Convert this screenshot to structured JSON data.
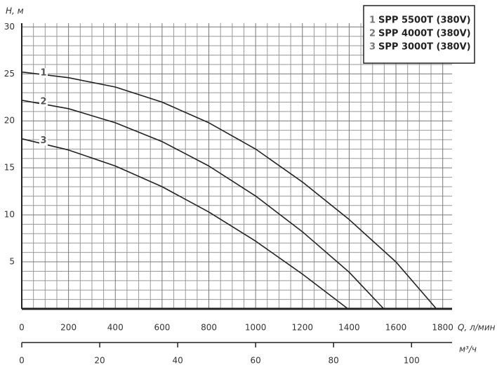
{
  "chart_data": {
    "type": "line",
    "y_label": "H, м",
    "x_label": "Q, л/мин",
    "x2_label": "м³/ч",
    "xlim": [
      0,
      1840
    ],
    "xticks": [
      0,
      200,
      400,
      600,
      800,
      1000,
      1200,
      1400,
      1600,
      1800
    ],
    "x2lim": [
      0,
      110.4
    ],
    "x2ticks": [
      0,
      20,
      40,
      60,
      80,
      100
    ],
    "ylim": [
      0,
      30.4
    ],
    "yticks": [
      5,
      10,
      15,
      20,
      25,
      30
    ],
    "grid": true,
    "minor_grid": true,
    "legend": "top-right",
    "x": [
      0,
      200,
      400,
      600,
      800,
      1000,
      1200,
      1400,
      1600
    ],
    "series": [
      {
        "label": "1",
        "name": "SPP 5500T (380V)",
        "color": "#222222",
        "x": [
          0,
          200,
          400,
          600,
          800,
          1000,
          1200,
          1400,
          1600,
          1773
        ],
        "values": [
          25.2,
          24.6,
          23.6,
          22.0,
          19.8,
          17.0,
          13.5,
          9.5,
          5.0,
          0
        ]
      },
      {
        "label": "2",
        "name": "SPP 4000T (380V)",
        "color": "#222222",
        "x": [
          0,
          200,
          400,
          600,
          800,
          1000,
          1200,
          1400,
          1548
        ],
        "values": [
          22.2,
          21.3,
          19.8,
          17.8,
          15.2,
          12.0,
          8.2,
          3.9,
          0
        ]
      },
      {
        "label": "3",
        "name": "SPP 3000T (380V)",
        "color": "#222222",
        "x": [
          0,
          200,
          400,
          600,
          800,
          1000,
          1200,
          1395
        ],
        "values": [
          18.1,
          16.9,
          15.2,
          13.0,
          10.3,
          7.2,
          3.7,
          0
        ]
      }
    ]
  }
}
